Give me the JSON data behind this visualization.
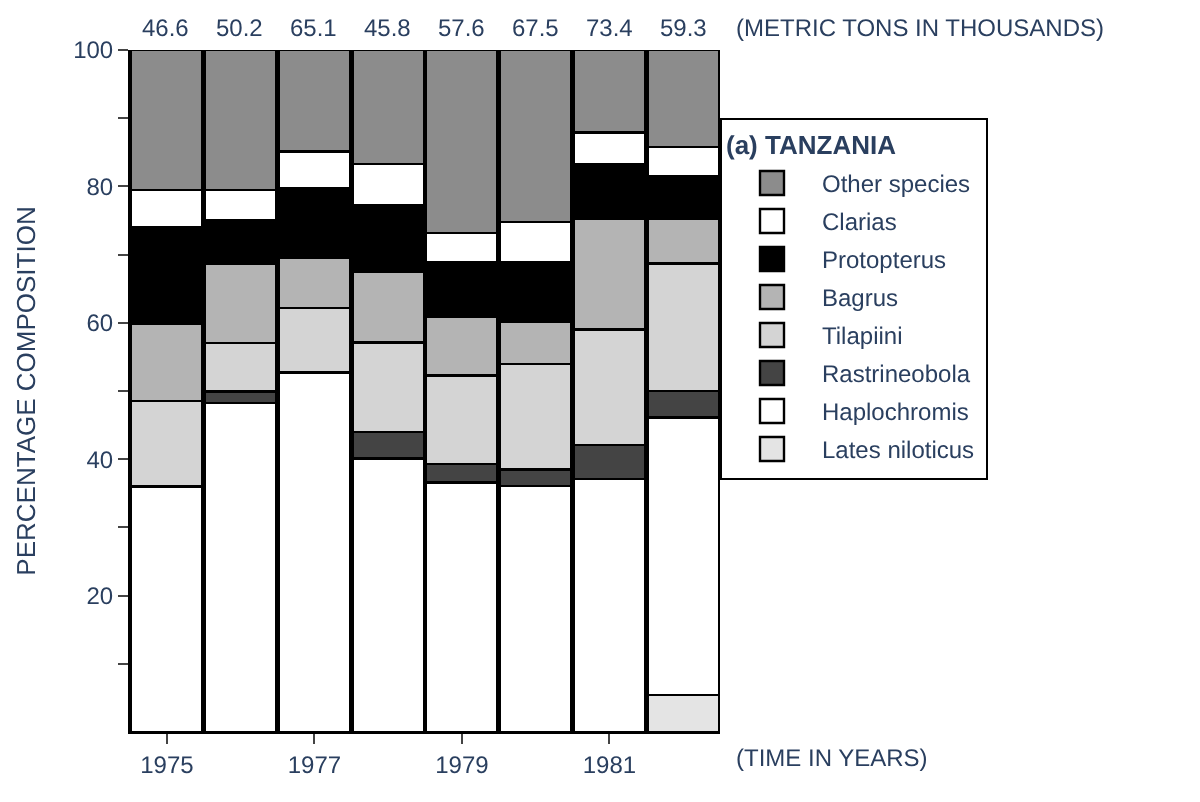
{
  "chart_data": {
    "type": "bar",
    "stacked": true,
    "legend_title": "(a) TANZANIA",
    "ylabel": "PERCENTAGE COMPOSITION",
    "xlabel": "(TIME IN YEARS)",
    "annotations": [
      "46.6",
      "50.2",
      "65.1",
      "45.8",
      "57.6",
      "67.5",
      "73.4",
      "59.3",
      "(METRIC TONS IN THOUSANDS)"
    ],
    "categories": [
      "1975",
      null,
      "1977",
      null,
      "1979",
      null,
      "1981",
      null
    ],
    "ylim": [
      0,
      100
    ],
    "yticks": [
      {
        "value": 10,
        "label": null
      },
      20,
      {
        "value": 30,
        "label": null
      },
      40,
      {
        "value": 50,
        "label": null
      },
      60,
      {
        "value": 70,
        "label": null
      },
      80,
      {
        "value": 90,
        "label": null
      },
      100
    ],
    "legend": "right",
    "series": [
      {
        "name": "Lates niloticus",
        "color": "#e4e4e4",
        "values": [
          0,
          0,
          0,
          0,
          0,
          0,
          0,
          5.4
        ]
      },
      {
        "name": "Haplochromis",
        "color": "#ffffff",
        "values": [
          36,
          48.2,
          52.7,
          40.1,
          36.6,
          36.1,
          37.1,
          40.7
        ]
      },
      {
        "name": "Rastrineobola",
        "color": "#444444",
        "values": [
          0,
          1.7,
          0,
          3.9,
          2.7,
          2.4,
          5.0,
          3.9
        ]
      },
      {
        "name": "Tilapiini",
        "color": "#d4d4d4",
        "values": [
          12.5,
          7.1,
          9.5,
          13.1,
          13.0,
          15.5,
          16.9,
          18.7
        ]
      },
      {
        "name": "Bagrus",
        "color": "#b4b4b4",
        "values": [
          11.3,
          11.7,
          7.4,
          10.4,
          8.6,
          6.1,
          16.3,
          6.6
        ]
      },
      {
        "name": "Protopterus",
        "color": "#000000",
        "values": [
          14.2,
          6.3,
          10.1,
          9.7,
          8.0,
          8.8,
          7.9,
          6.2
        ]
      },
      {
        "name": "Clarias",
        "color": "#ffffff",
        "values": [
          5.5,
          4.5,
          5.4,
          6.1,
          4.3,
          5.9,
          4.7,
          4.3
        ]
      },
      {
        "name": "Other species",
        "color": "#8c8c8c",
        "values": [
          20.5,
          20.5,
          14.9,
          16.7,
          26.8,
          25.2,
          12.1,
          14.2
        ]
      }
    ]
  }
}
